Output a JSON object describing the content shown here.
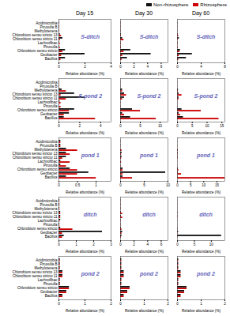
{
  "chart_data": [
    {
      "type": "bar",
      "orientation": "horizontal",
      "title": "Day 15",
      "xlabel": "Relative abundance (%)",
      "legend": "upper right",
      "annotations": [
        {
          "text": "S-ditch",
          "color": "#6666bb"
        }
      ],
      "categories": [
        "Bacillus",
        "Geobacter",
        "Chlorobium sensu stricto",
        "Piruvulla",
        "Lachnofibac",
        "Chlorobium sensu stricto 11",
        "Chlorobium sensu stricto 13",
        "Methylotenera",
        "Piruvulla B",
        "Acidimicrobia"
      ],
      "series": [
        {
          "name": "Non-rhizosphere",
          "color": "#111111",
          "values": [
            0.5,
            2.0,
            0.5,
            0.05,
            0.05,
            0.3,
            0.1,
            0.05,
            0.05,
            0.05
          ]
        },
        {
          "name": "Rhizosphere",
          "color": "#cc0000",
          "values": [
            0.15,
            0.2,
            0.3,
            0.1,
            0.1,
            0.1,
            0.2,
            0.05,
            0.05,
            0.05
          ]
        }
      ],
      "xlim": [
        0,
        4
      ],
      "xticks": [
        0,
        2,
        4
      ]
    },
    {
      "type": "bar",
      "orientation": "horizontal",
      "title": "Day 30",
      "xlabel": "Relative abundance (%)",
      "tick_labels": "x",
      "annotations": [
        {
          "text": "S-ditch",
          "color": "#6666bb"
        }
      ],
      "categories": [
        "Bacillus",
        "Geobacter",
        "Chlorobium sensu stricto",
        "Piruvulla",
        "Lachnofibac",
        "Chlorobium sensu stricto 11",
        "Chlorobium sensu stricto 13",
        "Methylotenera",
        "Piruvulla B",
        "Acidimicrobia"
      ],
      "series": [
        {
          "name": "Non-rhizosphere",
          "color": "#111111",
          "values": [
            1.0,
            4.5,
            1.5,
            0.05,
            0.05,
            0.3,
            0.1,
            0.05,
            0.05,
            0.05
          ]
        },
        {
          "name": "Rhizosphere",
          "color": "#cc0000",
          "values": [
            0.2,
            0.3,
            0.5,
            0.1,
            0.1,
            0.5,
            0.1,
            0.05,
            0.05,
            0.05
          ]
        }
      ],
      "xlim": [
        0,
        7
      ],
      "xticks": [
        0,
        2,
        4,
        6
      ]
    },
    {
      "type": "bar",
      "orientation": "horizontal",
      "title": "Day 60",
      "xlabel": "Relative abundance (%)",
      "tick_labels": "x",
      "annotations": [
        {
          "text": "S-ditch",
          "color": "#6666bb"
        }
      ],
      "categories": [
        "Bacillus",
        "Geobacter",
        "Chlorobium sensu stricto",
        "Piruvulla",
        "Lachnofibac",
        "Chlorobium sensu stricto 11",
        "Chlorobium sensu stricto 13",
        "Methylotenera",
        "Piruvulla B",
        "Acidimicrobia"
      ],
      "series": [
        {
          "name": "Non-rhizosphere",
          "color": "#111111",
          "values": [
            1.5,
            2.5,
            0.5,
            0.05,
            0.05,
            0.3,
            0.1,
            0.05,
            0.05,
            0.05
          ]
        },
        {
          "name": "Rhizosphere",
          "color": "#cc0000",
          "values": [
            0.2,
            0.3,
            0.4,
            0.1,
            0.1,
            0.1,
            0.2,
            0.05,
            0.05,
            0.05
          ]
        }
      ],
      "xlim": [
        0,
        8
      ],
      "xticks": [
        0,
        4,
        8
      ]
    },
    {
      "type": "bar",
      "orientation": "horizontal",
      "xlabel": "Relative abundance (%)",
      "annotations": [
        {
          "text": "S-pond 2",
          "color": "#6666bb"
        }
      ],
      "categories": [
        "Bacillus",
        "Geobacter",
        "Chlorobium sensu stricto",
        "Piruvulla",
        "Lachnofibac",
        "Chlorobium sensu stricto 11",
        "Chlorobium sensu stricto 13",
        "Methylotenera",
        "Piruvulla B",
        "Acidimicrobia"
      ],
      "series": [
        {
          "name": "Non-rhizosphere",
          "color": "#111111",
          "values": [
            0.5,
            1.0,
            1.5,
            0.05,
            0.1,
            2.5,
            1.5,
            0.3,
            0.05,
            0.05
          ]
        },
        {
          "name": "Rhizosphere",
          "color": "#cc0000",
          "values": [
            3.5,
            0.5,
            1.0,
            0.2,
            0.2,
            0.7,
            0.2,
            0.7,
            0.05,
            0.05
          ]
        }
      ],
      "xlim": [
        0,
        5
      ],
      "xticks": [
        0,
        2,
        4
      ]
    },
    {
      "type": "bar",
      "orientation": "horizontal",
      "xlabel": "Relative abundance (%)",
      "tick_labels": "x",
      "annotations": [
        {
          "text": "S-pond 2",
          "color": "#6666bb"
        }
      ],
      "categories": [
        "Bacillus",
        "Geobacter",
        "Chlorobium sensu stricto",
        "Piruvulla",
        "Lachnofibac",
        "Chlorobium sensu stricto 11",
        "Chlorobium sensu stricto 13",
        "Methylotenera",
        "Piruvulla B",
        "Acidimicrobia"
      ],
      "series": [
        {
          "name": "Non-rhizosphere",
          "color": "#111111",
          "values": [
            2.5,
            0.5,
            3.0,
            0.05,
            0.05,
            1.0,
            1.0,
            0.5,
            0.05,
            0.05
          ]
        },
        {
          "name": "Rhizosphere",
          "color": "#cc0000",
          "values": [
            9.0,
            1.0,
            5.0,
            0.1,
            0.1,
            0.5,
            1.5,
            0.5,
            0.05,
            0.05
          ]
        }
      ],
      "xlim": [
        0,
        12
      ],
      "xticks": [
        0,
        5,
        10
      ]
    },
    {
      "type": "bar",
      "orientation": "horizontal",
      "xlabel": "Relative abundance (%)",
      "tick_labels": "x",
      "annotations": [
        {
          "text": "S-pond 2",
          "color": "#6666bb"
        }
      ],
      "categories": [
        "Bacillus",
        "Geobacter",
        "Chlorobium sensu stricto",
        "Piruvulla",
        "Lachnofibac",
        "Chlorobium sensu stricto 11",
        "Chlorobium sensu stricto 13",
        "Methylotenera",
        "Piruvulla B",
        "Acidimicrobia"
      ],
      "series": [
        {
          "name": "Non-rhizosphere",
          "color": "#111111",
          "values": [
            2.0,
            0.5,
            1.5,
            0.05,
            0.05,
            0.5,
            0.5,
            0.3,
            0.05,
            0.05
          ]
        },
        {
          "name": "Rhizosphere",
          "color": "#cc0000",
          "values": [
            14.0,
            1.0,
            8.0,
            0.1,
            0.1,
            0.5,
            1.5,
            0.3,
            0.05,
            0.05
          ]
        }
      ],
      "xlim": [
        0,
        16
      ],
      "xticks": [
        0,
        5,
        10,
        15
      ]
    },
    {
      "type": "bar",
      "orientation": "horizontal",
      "xlabel": "Relative abundance (%)",
      "annotations": [
        {
          "text": "pond 1",
          "color": "#6666bb"
        }
      ],
      "categories": [
        "Bacillus",
        "Geobacter",
        "Chlorobium sensu stricto",
        "Piruvulla",
        "Lachnofibac",
        "Chlorobium sensu stricto 11",
        "Chlorobium sensu stricto 13",
        "Methylotenera",
        "Piruvulla B",
        "Acidimicrobia"
      ],
      "series": [
        {
          "name": "Non-rhizosphere",
          "color": "#111111",
          "values": [
            0.2,
            0.8,
            0.3,
            0.05,
            0.05,
            0.2,
            0.2,
            0.2,
            0.05,
            0.05
          ]
        },
        {
          "name": "Rhizosphere",
          "color": "#cc0000",
          "values": [
            1.0,
            0.5,
            0.5,
            0.2,
            0.3,
            0.1,
            0.3,
            0.5,
            0.05,
            0.05
          ]
        }
      ],
      "xlim": [
        0,
        1.4
      ],
      "xticks": [
        0,
        0.5,
        1
      ]
    },
    {
      "type": "bar",
      "orientation": "horizontal",
      "xlabel": "Relative abundance (%)",
      "tick_labels": "x",
      "annotations": [
        {
          "text": "pond 1",
          "color": "#6666bb"
        }
      ],
      "categories": [
        "Bacillus",
        "Geobacter",
        "Chlorobium sensu stricto",
        "Piruvulla",
        "Lachnofibac",
        "Chlorobium sensu stricto 11",
        "Chlorobium sensu stricto 13",
        "Methylotenera",
        "Piruvulla B",
        "Acidimicrobia"
      ],
      "series": [
        {
          "name": "Non-rhizosphere",
          "color": "#111111",
          "values": [
            0.5,
            9.5,
            0.5,
            0.05,
            0.05,
            0.3,
            0.3,
            0.05,
            0.05,
            0.05
          ]
        },
        {
          "name": "Rhizosphere",
          "color": "#cc0000",
          "values": [
            2.5,
            0.5,
            0.5,
            0.1,
            0.2,
            0.2,
            0.2,
            0.3,
            0.05,
            0.05
          ]
        }
      ],
      "xlim": [
        0,
        10
      ],
      "xticks": [
        0,
        5,
        10
      ]
    },
    {
      "type": "bar",
      "orientation": "horizontal",
      "xlabel": "Relative abundance (%)",
      "tick_labels": "x",
      "annotations": [
        {
          "text": "pond 1",
          "color": "#6666bb"
        }
      ],
      "categories": [
        "Bacillus",
        "Geobacter",
        "Chlorobium sensu stricto",
        "Piruvulla",
        "Lachnofibac",
        "Chlorobium sensu stricto 11",
        "Chlorobium sensu stricto 13",
        "Methylotenera",
        "Piruvulla B",
        "Acidimicrobia"
      ],
      "series": [
        {
          "name": "Non-rhizosphere",
          "color": "#111111",
          "values": [
            0.2,
            0.3,
            0.3,
            0.05,
            0.05,
            0.2,
            0.2,
            0.05,
            0.05,
            0.05
          ]
        },
        {
          "name": "Rhizosphere",
          "color": "#cc0000",
          "values": [
            18.0,
            1.5,
            0.5,
            0.05,
            0.05,
            0.2,
            0.2,
            0.3,
            0.05,
            0.05
          ]
        }
      ],
      "xlim": [
        0,
        18
      ],
      "xticks": [
        0,
        5,
        10,
        15
      ]
    },
    {
      "type": "bar",
      "orientation": "horizontal",
      "xlabel": "Relative abundance (%)",
      "annotations": [
        {
          "text": "ditch",
          "color": "#6666bb"
        }
      ],
      "categories": [
        "Bacillus",
        "Geobacter",
        "Chlorobium sensu stricto",
        "Piruvulla",
        "Lachnofibac",
        "Chlorobium sensu stricto 11",
        "Chlorobium sensu stricto 13",
        "Methylotenera",
        "Piruvulla B",
        "Acidimicrobia"
      ],
      "series": [
        {
          "name": "Non-rhizosphere",
          "color": "#111111",
          "values": [
            0.3,
            2.5,
            0.1,
            0.05,
            0.1,
            0.1,
            0.1,
            0.05,
            0.05,
            0.05
          ]
        },
        {
          "name": "Rhizosphere",
          "color": "#cc0000",
          "values": [
            0.2,
            0.2,
            0.8,
            0.05,
            0.05,
            0.1,
            0.1,
            0.05,
            0.05,
            0.05
          ]
        }
      ],
      "xlim": [
        0,
        3.0
      ],
      "xticks": [
        0,
        1,
        2,
        3
      ]
    },
    {
      "type": "bar",
      "orientation": "horizontal",
      "xlabel": "Relative abundance (%)",
      "tick_labels": "x",
      "annotations": [
        {
          "text": "ditch",
          "color": "#6666bb"
        }
      ],
      "categories": [
        "Bacillus",
        "Geobacter",
        "Chlorobium sensu stricto",
        "Piruvulla",
        "Lachnofibac",
        "Chlorobium sensu stricto 11",
        "Chlorobium sensu stricto 13",
        "Methylotenera",
        "Piruvulla B",
        "Acidimicrobia"
      ],
      "series": [
        {
          "name": "Non-rhizosphere",
          "color": "#111111",
          "values": [
            0.2,
            0.3,
            0.1,
            0.05,
            0.05,
            0.1,
            0.1,
            0.05,
            0.05,
            0.05
          ]
        },
        {
          "name": "Rhizosphere",
          "color": "#cc0000",
          "values": [
            0.1,
            0.2,
            0.2,
            0.05,
            0.05,
            0.3,
            0.3,
            0.05,
            0.05,
            0.05
          ]
        }
      ],
      "xlim": [
        0,
        7
      ],
      "xticks": [
        0,
        2,
        4,
        6
      ]
    },
    {
      "type": "bar",
      "orientation": "horizontal",
      "xlabel": "Relative abundance (%)",
      "tick_labels": "x",
      "annotations": [
        {
          "text": "ditch",
          "color": "#6666bb"
        }
      ],
      "categories": [
        "Bacillus",
        "Geobacter",
        "Chlorobium sensu stricto",
        "Piruvulla",
        "Lachnofibac",
        "Chlorobium sensu stricto 11",
        "Chlorobium sensu stricto 13",
        "Methylotenera",
        "Piruvulla B",
        "Acidimicrobia"
      ],
      "series": [
        {
          "name": "Non-rhizosphere",
          "color": "#111111",
          "values": [
            13.0,
            0.3,
            0.1,
            0.05,
            0.05,
            0.1,
            0.1,
            0.05,
            0.05,
            0.05
          ]
        },
        {
          "name": "Rhizosphere",
          "color": "#cc0000",
          "values": [
            0.1,
            0.1,
            0.1,
            0.05,
            0.05,
            0.1,
            0.1,
            0.05,
            0.05,
            0.05
          ]
        }
      ],
      "xlim": [
        0,
        14
      ],
      "xticks": [
        0,
        5,
        10
      ]
    },
    {
      "type": "bar",
      "orientation": "horizontal",
      "xlabel": "Relative abundance (%)",
      "annotations": [
        {
          "text": "pond 2",
          "color": "#6666bb"
        }
      ],
      "categories": [
        "Bacillus",
        "Geobacter",
        "Chlorobium sensu stricto",
        "Piruvulla",
        "Lachnofibac",
        "Chlorobium sensu stricto 11",
        "Chlorobium sensu stricto 13",
        "Methylotenera",
        "Piruvulla B",
        "Acidimicrobia"
      ],
      "series": [
        {
          "name": "Non-rhizosphere",
          "color": "#111111",
          "values": [
            0.15,
            0.3,
            0.4,
            0.05,
            0.05,
            0.15,
            0.15,
            0.05,
            0.05,
            0.05
          ]
        },
        {
          "name": "Rhizosphere",
          "color": "#cc0000",
          "values": [
            0.15,
            0.3,
            0.4,
            0.05,
            0.05,
            0.15,
            0.15,
            0.05,
            0.05,
            0.05
          ]
        }
      ],
      "xlim": [
        0,
        2
      ],
      "xticks": [
        0,
        1,
        2
      ]
    },
    {
      "type": "bar",
      "orientation": "horizontal",
      "xlabel": "Relative abundance (%)",
      "tick_labels": "x",
      "annotations": [
        {
          "text": "pond 2",
          "color": "#6666bb"
        }
      ],
      "categories": [
        "Bacillus",
        "Geobacter",
        "Chlorobium sensu stricto",
        "Piruvulla",
        "Lachnofibac",
        "Chlorobium sensu stricto 11",
        "Chlorobium sensu stricto 13",
        "Methylotenera",
        "Piruvulla B",
        "Acidimicrobia"
      ],
      "series": [
        {
          "name": "Non-rhizosphere",
          "color": "#111111",
          "values": [
            0.15,
            0.3,
            0.4,
            0.05,
            0.05,
            0.15,
            0.15,
            0.05,
            0.05,
            0.05
          ]
        },
        {
          "name": "Rhizosphere",
          "color": "#cc0000",
          "values": [
            0.15,
            0.3,
            0.4,
            0.05,
            0.05,
            0.15,
            0.15,
            0.05,
            0.05,
            0.05
          ]
        }
      ],
      "xlim": [
        0,
        2
      ],
      "xticks": [
        0,
        1,
        2
      ]
    },
    {
      "type": "bar",
      "orientation": "horizontal",
      "xlabel": "Relative abundance (%)",
      "tick_labels": "x",
      "annotations": [
        {
          "text": "pond 2",
          "color": "#6666bb"
        }
      ],
      "categories": [
        "Bacillus",
        "Geobacter",
        "Chlorobium sensu stricto",
        "Piruvulla",
        "Lachnofibac",
        "Chlorobium sensu stricto 11",
        "Chlorobium sensu stricto 13",
        "Methylotenera",
        "Piruvulla B",
        "Acidimicrobia"
      ],
      "series": [
        {
          "name": "Non-rhizosphere",
          "color": "#111111",
          "values": [
            0.15,
            0.3,
            0.4,
            0.05,
            0.05,
            0.15,
            0.15,
            0.05,
            0.05,
            0.05
          ]
        },
        {
          "name": "Rhizosphere",
          "color": "#cc0000",
          "values": [
            0.15,
            0.3,
            0.4,
            0.05,
            0.05,
            0.15,
            0.15,
            0.05,
            0.05,
            0.05
          ]
        }
      ],
      "xlim": [
        0,
        2
      ],
      "xticks": [
        0,
        1,
        2
      ]
    }
  ]
}
